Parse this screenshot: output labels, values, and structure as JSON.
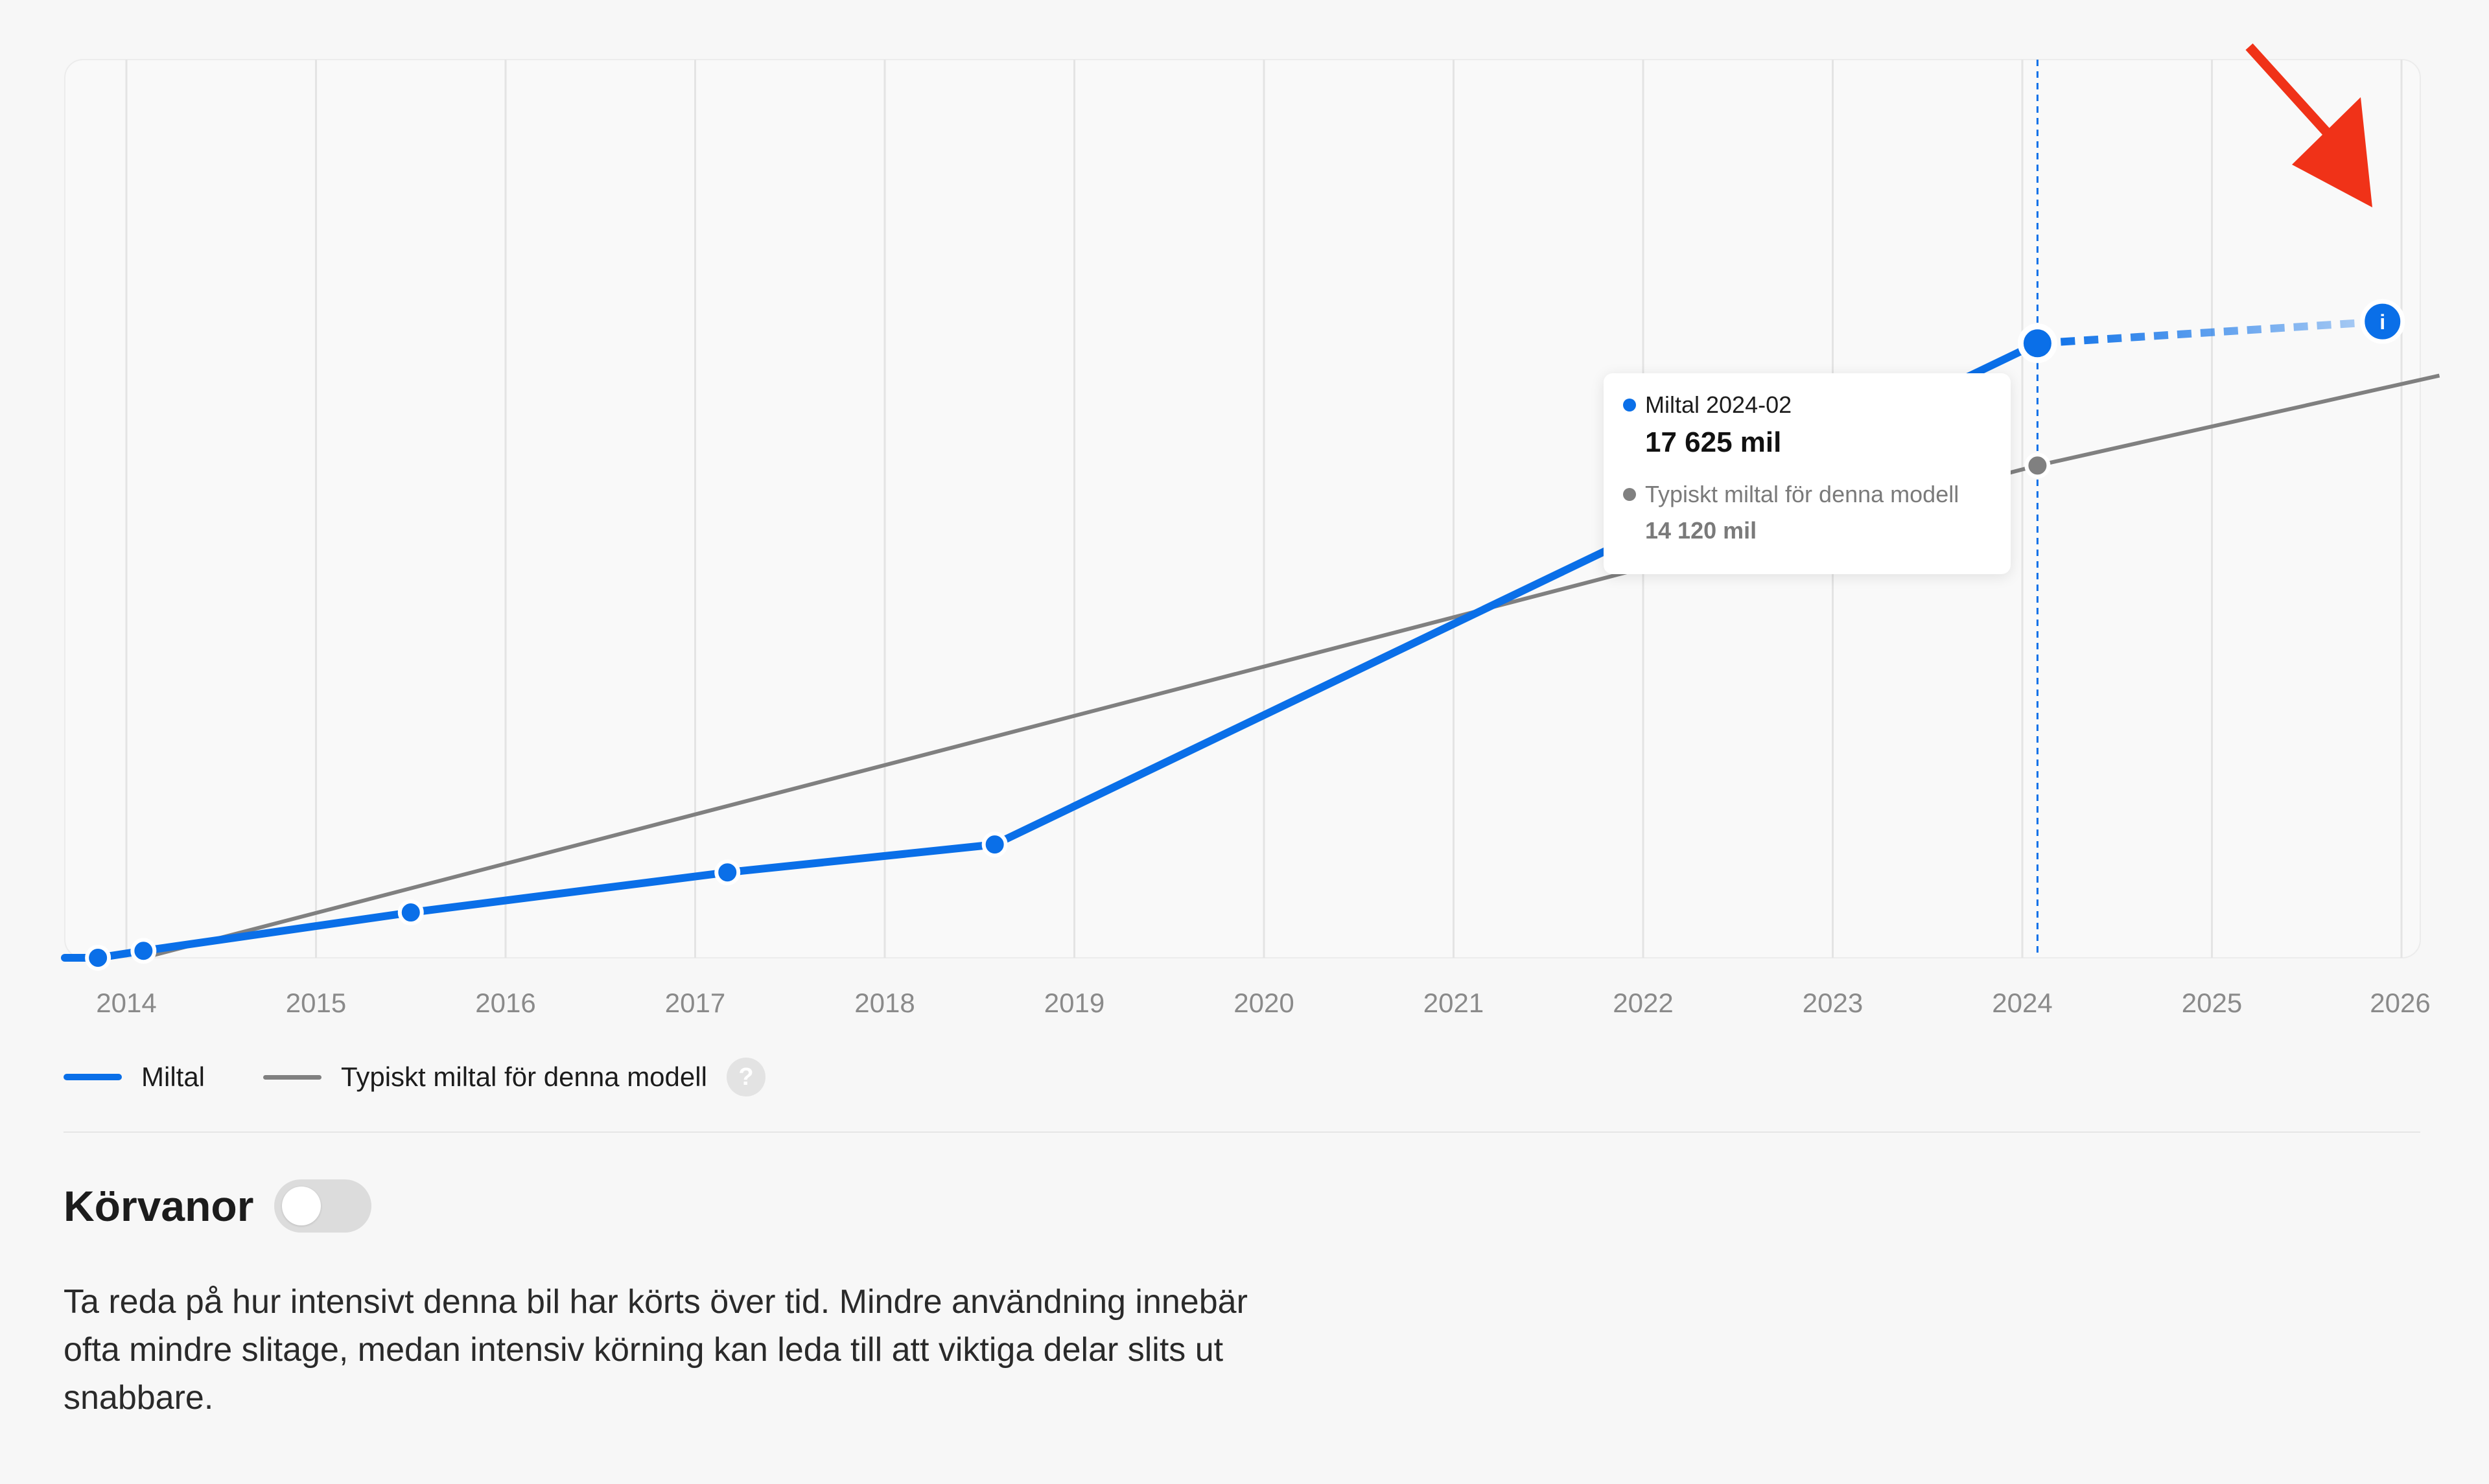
{
  "chart_data": {
    "type": "line",
    "x_ticks": [
      "2014",
      "2015",
      "2016",
      "2017",
      "2018",
      "2019",
      "2020",
      "2021",
      "2022",
      "2023",
      "2024",
      "2025",
      "2026"
    ],
    "series": [
      {
        "name": "Miltal",
        "color": "#0a6fe8",
        "points": [
          [
            2013.85,
            0
          ],
          [
            2014.09,
            200
          ],
          [
            2015.5,
            1300
          ],
          [
            2017.17,
            2450
          ],
          [
            2018.58,
            3250
          ],
          [
            2024.08,
            17625
          ]
        ],
        "marker_indices": [
          0,
          1,
          2,
          3,
          4,
          5
        ],
        "projection": [
          [
            2024.08,
            17625
          ],
          [
            2025.9,
            18250
          ]
        ]
      },
      {
        "name": "Typiskt miltal för denna modell",
        "color": "#808080",
        "points": [
          [
            2014.09,
            0
          ],
          [
            2024.08,
            14120
          ],
          [
            2026.2,
            16700
          ]
        ]
      }
    ],
    "highlight": {
      "x": 2024.08,
      "label": "2024-02"
    }
  },
  "tooltip": {
    "series1_label": "Miltal 2024-02",
    "series1_value": "17 625 mil",
    "series2_label": "Typiskt miltal för denna modell",
    "series2_value": "14 120 mil"
  },
  "legend": {
    "item1": "Miltal",
    "item2": "Typiskt miltal för denna modell",
    "help_glyph": "?"
  },
  "info_glyph": "i",
  "section": {
    "title": "Körvanor",
    "toggle_on": false,
    "description": "Ta reda på hur intensivt denna bil har körts över tid. Mindre användning innebär ofta mindre slitage, medan intensiv körning kan leda till att viktiga delar slits ut snabbare."
  },
  "colors": {
    "primary": "#0a6fe8",
    "typical": "#808080",
    "annotation_arrow": "#f03218"
  }
}
